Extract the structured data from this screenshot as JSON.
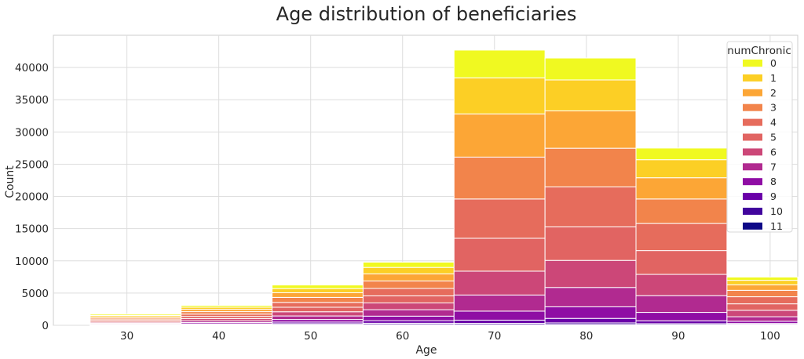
{
  "chart_data": {
    "type": "bar",
    "title": "Age distribution of beneficiaries",
    "xlabel": "Age",
    "ylabel": "Count",
    "stacked": true,
    "xlim": [
      22,
      103
    ],
    "ylim": [
      0,
      45000
    ],
    "grid": true,
    "legend_title": "numChronic",
    "legend_position": "top-right",
    "x_ticks": [
      30,
      40,
      50,
      60,
      70,
      80,
      90,
      100
    ],
    "y_ticks": [
      0,
      5000,
      10000,
      15000,
      20000,
      25000,
      30000,
      35000,
      40000
    ],
    "bins": [
      [
        26,
        35.9
      ],
      [
        35.9,
        45.8
      ],
      [
        45.8,
        55.7
      ],
      [
        55.7,
        65.6
      ],
      [
        65.6,
        75.5
      ],
      [
        75.5,
        85.4
      ],
      [
        85.4,
        95.3
      ],
      [
        95.3,
        105.2
      ]
    ],
    "categories": [
      "30",
      "40",
      "50",
      "60",
      "70",
      "80",
      "90",
      "100"
    ],
    "series": [
      {
        "name": "11",
        "color": "#0d0887",
        "values": [
          10,
          40,
          100,
          120,
          100,
          120,
          80,
          50
        ]
      },
      {
        "name": "10",
        "color": "#41049d",
        "values": [
          20,
          60,
          150,
          200,
          200,
          250,
          170,
          80
        ]
      },
      {
        "name": "9",
        "color": "#6a00a8",
        "values": [
          50,
          120,
          250,
          400,
          500,
          700,
          450,
          150
        ]
      },
      {
        "name": "8",
        "color": "#8f0da4",
        "values": [
          90,
          200,
          400,
          700,
          1400,
          1800,
          1300,
          350
        ]
      },
      {
        "name": "7",
        "color": "#b12a90",
        "values": [
          130,
          280,
          550,
          1000,
          2500,
          3000,
          2600,
          700
        ]
      },
      {
        "name": "6",
        "color": "#cc4778",
        "values": [
          170,
          330,
          650,
          1050,
          3700,
          4200,
          3300,
          1000
        ]
      },
      {
        "name": "5",
        "color": "#e16462",
        "values": [
          200,
          350,
          700,
          1100,
          5100,
          5200,
          3700,
          1000
        ]
      },
      {
        "name": "4",
        "color": "#e66c5c",
        "values": [
          200,
          360,
          750,
          1150,
          6100,
          6200,
          4200,
          1100
        ]
      },
      {
        "name": "3",
        "color": "#f2844b",
        "values": [
          230,
          380,
          780,
          1160,
          6500,
          6000,
          3800,
          1000
        ]
      },
      {
        "name": "2",
        "color": "#fca636",
        "values": [
          220,
          360,
          720,
          1100,
          6700,
          5800,
          3300,
          850
        ]
      },
      {
        "name": "1",
        "color": "#fccf25",
        "values": [
          210,
          320,
          650,
          1000,
          5600,
          4800,
          2800,
          700
        ]
      },
      {
        "name": "0",
        "color": "#f0f921",
        "values": [
          200,
          280,
          550,
          820,
          4300,
          3400,
          1800,
          500
        ]
      }
    ]
  }
}
